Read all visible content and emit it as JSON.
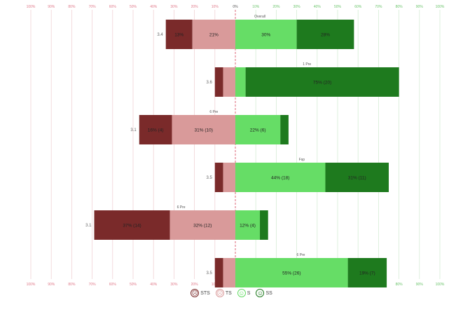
{
  "chart_data": {
    "type": "bar",
    "orientation": "horizontal-diverging",
    "title": "",
    "xlim": [
      -100,
      100
    ],
    "top_ticks": [
      "100%",
      "90%",
      "80%",
      "70%",
      "60%",
      "50%",
      "40%",
      "30%",
      "20%",
      "10%",
      "0%",
      "10%",
      "20%",
      "30%",
      "40%",
      "50%",
      "60%",
      "70%",
      "80%",
      "90%",
      "100%"
    ],
    "bottom_ticks": [
      "100%",
      "90%",
      "80%",
      "70%",
      "60%",
      "50%",
      "40%",
      "30%",
      "20%",
      "10%",
      "0%",
      "10%",
      "20%",
      "30%",
      "40%",
      "50%",
      "60%",
      "70%",
      "80%",
      "90%",
      "100%"
    ],
    "series_colors": [
      "#7a2a2a",
      "#d99a9a",
      "#66dd66",
      "#1e7a1e"
    ],
    "groups": [
      {
        "title": "Overall",
        "row_label": "3.4",
        "values": [
          -13,
          -21,
          30,
          28
        ],
        "labels": [
          "13%",
          "21%",
          "30%",
          "28%"
        ]
      },
      {
        "title": "1 Pre",
        "row_label": "3.6",
        "values": [
          -4,
          -6,
          5,
          75
        ],
        "labels": [
          "",
          "",
          "",
          "75% (20)"
        ]
      },
      {
        "title": "6 Pre",
        "row_label": "3.1",
        "values": [
          -16,
          -31,
          22,
          4
        ],
        "labels": [
          "16% (4)",
          "31% (10)",
          "22% (6)",
          ""
        ]
      },
      {
        "title": "Fsp",
        "row_label": "3.5",
        "values": [
          -4,
          -6,
          44,
          31
        ],
        "labels": [
          "",
          "",
          "44% (18)",
          "31% (11)"
        ]
      },
      {
        "title": "6 Pre",
        "row_label": "3.1",
        "values": [
          -37,
          -32,
          12,
          4
        ],
        "labels": [
          "37% (14)",
          "32% (12)",
          "12% (4)",
          ""
        ]
      },
      {
        "title": "6 Pre",
        "row_label": "3.5",
        "values": [
          -4,
          -6,
          55,
          19
        ],
        "labels": [
          "",
          "",
          "55% (26)",
          "19% (7)"
        ]
      }
    ]
  },
  "legend": {
    "items": [
      {
        "glyph": "☹",
        "label": "STS",
        "color": "#7a2a2a"
      },
      {
        "glyph": "☹",
        "label": "TS",
        "color": "#d99a9a"
      },
      {
        "glyph": "☺",
        "label": "S",
        "color": "#66dd66"
      },
      {
        "glyph": "☺",
        "label": "SS",
        "color": "#1e7a1e"
      }
    ]
  }
}
